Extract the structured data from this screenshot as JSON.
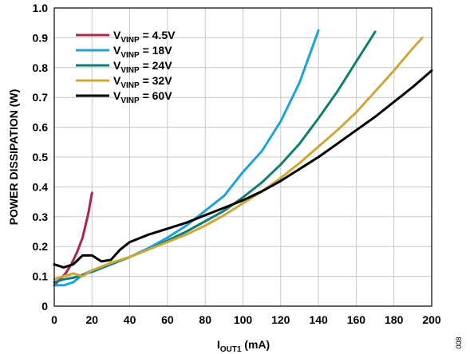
{
  "chart_data": {
    "type": "line",
    "xlabel_main": "I",
    "xlabel_sub": "OUT1",
    "xlabel_unit": " (mA)",
    "ylabel": "POWER DISSIPATION (W)",
    "xlim": [
      0,
      200
    ],
    "ylim": [
      0,
      1.0
    ],
    "x_ticks": [
      "0",
      "20",
      "40",
      "60",
      "80",
      "100",
      "120",
      "140",
      "160",
      "180",
      "200"
    ],
    "y_ticks": [
      "0",
      "0.1",
      "0.2",
      "0.3",
      "0.4",
      "0.5",
      "0.6",
      "0.7",
      "0.8",
      "0.9",
      "1.0"
    ],
    "grid": true,
    "legend_position": "top-left",
    "figure_id": "008",
    "series": [
      {
        "name_main": "V",
        "name_sub": "VINP",
        "name_suffix": " = 4.5V",
        "color": "#a8274a",
        "x": [
          0,
          3,
          6,
          9,
          12,
          15,
          18,
          20
        ],
        "y": [
          0.07,
          0.09,
          0.11,
          0.14,
          0.18,
          0.23,
          0.31,
          0.38
        ]
      },
      {
        "name_main": "V",
        "name_sub": "VINP",
        "name_suffix": " = 18V",
        "color": "#1ea3d9",
        "x": [
          0,
          5,
          10,
          15,
          20,
          30,
          40,
          50,
          60,
          70,
          80,
          90,
          100,
          110,
          120,
          130,
          140
        ],
        "y": [
          0.07,
          0.07,
          0.08,
          0.105,
          0.12,
          0.14,
          0.165,
          0.195,
          0.23,
          0.27,
          0.32,
          0.37,
          0.45,
          0.52,
          0.62,
          0.75,
          0.925
        ]
      },
      {
        "name_main": "V",
        "name_sub": "VINP",
        "name_suffix": " = 24V",
        "color": "#117e72",
        "x": [
          0,
          5,
          10,
          15,
          20,
          30,
          40,
          50,
          60,
          70,
          80,
          90,
          100,
          110,
          120,
          130,
          140,
          150,
          160,
          170
        ],
        "y": [
          0.08,
          0.09,
          0.095,
          0.105,
          0.115,
          0.14,
          0.165,
          0.19,
          0.22,
          0.25,
          0.285,
          0.32,
          0.365,
          0.415,
          0.475,
          0.545,
          0.63,
          0.72,
          0.82,
          0.92
        ]
      },
      {
        "name_main": "V",
        "name_sub": "VINP",
        "name_suffix": " = 32V",
        "color": "#cda73a",
        "x": [
          0,
          5,
          10,
          15,
          20,
          30,
          40,
          50,
          60,
          70,
          80,
          90,
          100,
          110,
          120,
          130,
          140,
          150,
          160,
          170,
          180,
          190,
          195
        ],
        "y": [
          0.09,
          0.1,
          0.11,
          0.1,
          0.12,
          0.145,
          0.165,
          0.19,
          0.215,
          0.24,
          0.27,
          0.305,
          0.345,
          0.385,
          0.43,
          0.48,
          0.535,
          0.59,
          0.65,
          0.72,
          0.79,
          0.865,
          0.9
        ]
      },
      {
        "name_main": "V",
        "name_sub": "VINP",
        "name_suffix": " = 60V",
        "color": "#000000",
        "x": [
          0,
          5,
          10,
          15,
          20,
          25,
          30,
          35,
          40,
          50,
          60,
          70,
          80,
          90,
          100,
          110,
          120,
          130,
          140,
          150,
          160,
          170,
          180,
          190,
          200
        ],
        "y": [
          0.14,
          0.13,
          0.14,
          0.17,
          0.17,
          0.15,
          0.155,
          0.19,
          0.215,
          0.24,
          0.26,
          0.28,
          0.305,
          0.33,
          0.355,
          0.385,
          0.42,
          0.46,
          0.5,
          0.545,
          0.59,
          0.635,
          0.685,
          0.735,
          0.79
        ]
      }
    ]
  }
}
